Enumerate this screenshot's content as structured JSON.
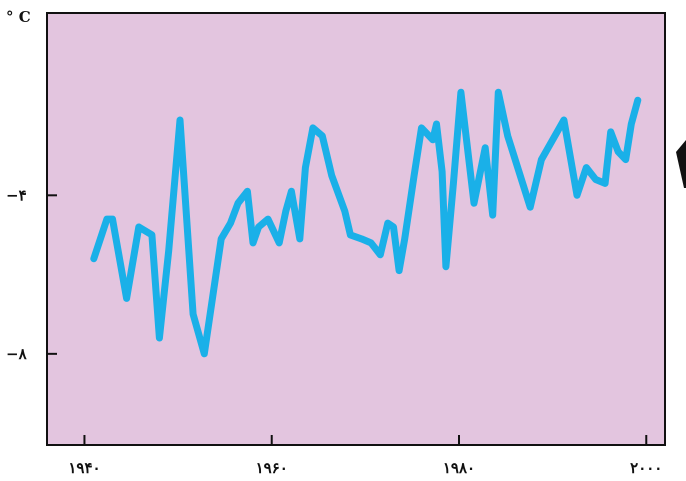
{
  "chart_data": {
    "type": "line",
    "title": "",
    "xlabel": "",
    "ylabel": "° C",
    "x_ticks": [
      {
        "value": 1940,
        "label": "۱۹۴۰"
      },
      {
        "value": 1960,
        "label": "۱۹۶۰"
      },
      {
        "value": 1980,
        "label": "۱۹۸۰"
      },
      {
        "value": 2000,
        "label": "۲۰۰۰"
      }
    ],
    "y_ticks": [
      {
        "value": -4,
        "label": "−۴"
      },
      {
        "value": -8,
        "label": "−۸"
      }
    ],
    "xlim": [
      1936,
      2002
    ],
    "ylim": [
      -10.3,
      0.6
    ],
    "grid": false,
    "background_color": "#e3c5df",
    "line_color": "#1ab0e8",
    "series": [
      {
        "x": [
          1941,
          1942.4,
          1943,
          1944.5,
          1945.8,
          1947.2,
          1948,
          1949,
          1950.2,
          1951.6,
          1952.8,
          1954.6,
          1955.6,
          1956.4,
          1957.4,
          1958,
          1958.6,
          1959.6,
          1960.8,
          1961.5,
          1962.1,
          1963,
          1963.6,
          1964.4,
          1965.4,
          1966.4,
          1967.8,
          1968.4,
          1969.6,
          1970.6,
          1971.6,
          1972.4,
          1973,
          1973.6,
          1974.2,
          1975.2,
          1976,
          1977.2,
          1977.6,
          1978.2,
          1978.6,
          1979.4,
          1980.2,
          1981.6,
          1982.8,
          1983.6,
          1984.2,
          1985.2,
          1987.6,
          1988.8,
          1991.2,
          1992.6,
          1993.6,
          1994.6,
          1995.6,
          1996.2,
          1997,
          1997.8,
          1998.4,
          1999.1
        ],
        "y": [
          -5.6,
          -4.6,
          -4.6,
          -6.6,
          -4.8,
          -5,
          -7.6,
          -5.4,
          -2.1,
          -7,
          -8,
          -5.1,
          -4.7,
          -4.2,
          -3.9,
          -5.2,
          -4.8,
          -4.6,
          -5.2,
          -4.4,
          -3.9,
          -5.1,
          -3.3,
          -2.3,
          -2.5,
          -3.5,
          -4.4,
          -5,
          -5.1,
          -5.2,
          -5.5,
          -4.7,
          -4.8,
          -5.9,
          -5.1,
          -3.5,
          -2.3,
          -2.6,
          -2.2,
          -3.4,
          -5.8,
          -3.7,
          -1.4,
          -4.2,
          -2.8,
          -4.5,
          -1.4,
          -2.5,
          -4.3,
          -3.1,
          -2.1,
          -4,
          -3.3,
          -3.6,
          -3.7,
          -2.4,
          -2.9,
          -3.1,
          -2.2,
          -1.6
        ]
      }
    ]
  }
}
